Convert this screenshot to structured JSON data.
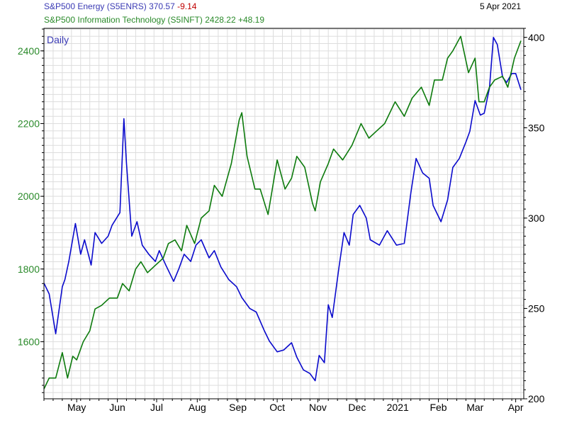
{
  "header": {
    "energy_name": "S&P500 Energy (S5ENRS)",
    "energy_value": "370.57",
    "energy_change": "-9.14",
    "tech_name": "S&P500 Information Technology (S5INFT)",
    "tech_value": "2428.22",
    "tech_change": "+48.19",
    "date": "5 Apr 2021"
  },
  "colors": {
    "energy": "#0a0acc",
    "tech": "#0c7a0c",
    "negative": "#c00000",
    "grid": "#dddddd",
    "label_energy": "#3a3ab4",
    "label_tech": "#2a8a2a"
  },
  "chart_data": {
    "type": "line",
    "period_label": "Daily",
    "x_month_labels": [
      "May",
      "Jun",
      "Jul",
      "Aug",
      "Sep",
      "Oct",
      "Nov",
      "Dec",
      "2021",
      "Feb",
      "Mar",
      "Apr"
    ],
    "left_axis": {
      "ticks": [
        1600,
        1800,
        2000,
        2200,
        2400
      ],
      "range": [
        1443,
        2462
      ]
    },
    "right_axis": {
      "ticks": [
        200,
        250,
        300,
        350,
        400
      ],
      "range": [
        200,
        405
      ]
    },
    "series": [
      {
        "name": "S&P500 Energy (S5ENRS)",
        "axis": "right",
        "x": [
          "2020-04-06",
          "2020-04-10",
          "2020-04-15",
          "2020-04-20",
          "2020-04-22",
          "2020-04-25",
          "2020-04-30",
          "2020-05-04",
          "2020-05-07",
          "2020-05-12",
          "2020-05-15",
          "2020-05-20",
          "2020-05-25",
          "2020-05-28",
          "2020-06-03",
          "2020-06-06",
          "2020-06-08",
          "2020-06-12",
          "2020-06-16",
          "2020-06-20",
          "2020-06-25",
          "2020-06-30",
          "2020-07-03",
          "2020-07-08",
          "2020-07-14",
          "2020-07-18",
          "2020-07-22",
          "2020-07-27",
          "2020-07-31",
          "2020-08-04",
          "2020-08-10",
          "2020-08-14",
          "2020-08-19",
          "2020-08-25",
          "2020-08-31",
          "2020-09-04",
          "2020-09-10",
          "2020-09-15",
          "2020-09-21",
          "2020-09-25",
          "2020-10-01",
          "2020-10-06",
          "2020-10-12",
          "2020-10-16",
          "2020-10-21",
          "2020-10-26",
          "2020-10-30",
          "2020-11-02",
          "2020-11-06",
          "2020-11-09",
          "2020-11-12",
          "2020-11-17",
          "2020-11-21",
          "2020-11-25",
          "2020-11-28",
          "2020-12-03",
          "2020-12-08",
          "2020-12-11",
          "2020-12-18",
          "2020-12-24",
          "2020-12-31",
          "2021-01-06",
          "2021-01-11",
          "2021-01-15",
          "2021-01-20",
          "2021-01-25",
          "2021-01-28",
          "2021-02-03",
          "2021-02-08",
          "2021-02-12",
          "2021-02-17",
          "2021-02-22",
          "2021-02-25",
          "2021-03-01",
          "2021-03-05",
          "2021-03-08",
          "2021-03-12",
          "2021-03-15",
          "2021-03-18",
          "2021-03-22",
          "2021-03-25",
          "2021-03-29",
          "2021-04-01",
          "2021-04-05"
        ],
        "values": [
          264,
          258,
          236,
          262,
          266,
          276,
          297,
          280,
          288,
          274,
          292,
          286,
          290,
          296,
          303,
          355,
          330,
          290,
          298,
          285,
          280,
          276,
          282,
          274,
          265,
          272,
          280,
          276,
          285,
          288,
          278,
          282,
          273,
          266,
          262,
          256,
          250,
          248,
          238,
          232,
          226,
          227,
          231,
          223,
          216,
          214,
          210,
          224,
          220,
          252,
          245,
          272,
          292,
          285,
          302,
          307,
          300,
          288,
          285,
          293,
          285,
          286,
          314,
          333,
          325,
          322,
          307,
          298,
          310,
          328,
          333,
          342,
          348,
          365,
          357,
          358,
          372,
          400,
          396,
          378,
          375,
          380,
          380,
          371
        ],
        "color": "#0a0acc"
      },
      {
        "name": "S&P500 Information Technology (S5INFT)",
        "axis": "left",
        "x": [
          "2020-04-06",
          "2020-04-10",
          "2020-04-15",
          "2020-04-20",
          "2020-04-24",
          "2020-04-28",
          "2020-05-01",
          "2020-05-06",
          "2020-05-11",
          "2020-05-15",
          "2020-05-20",
          "2020-05-26",
          "2020-06-01",
          "2020-06-05",
          "2020-06-10",
          "2020-06-15",
          "2020-06-19",
          "2020-06-24",
          "2020-06-30",
          "2020-07-06",
          "2020-07-10",
          "2020-07-15",
          "2020-07-20",
          "2020-07-24",
          "2020-07-30",
          "2020-08-04",
          "2020-08-10",
          "2020-08-14",
          "2020-08-20",
          "2020-08-27",
          "2020-09-02",
          "2020-09-04",
          "2020-09-08",
          "2020-09-14",
          "2020-09-18",
          "2020-09-24",
          "2020-10-01",
          "2020-10-07",
          "2020-10-12",
          "2020-10-16",
          "2020-10-22",
          "2020-10-28",
          "2020-10-30",
          "2020-11-03",
          "2020-11-09",
          "2020-11-13",
          "2020-11-20",
          "2020-11-27",
          "2020-12-04",
          "2020-12-10",
          "2020-12-16",
          "2020-12-22",
          "2020-12-30",
          "2021-01-06",
          "2021-01-12",
          "2021-01-19",
          "2021-01-25",
          "2021-01-29",
          "2021-02-04",
          "2021-02-08",
          "2021-02-12",
          "2021-02-18",
          "2021-02-24",
          "2021-03-01",
          "2021-03-04",
          "2021-03-08",
          "2021-03-12",
          "2021-03-16",
          "2021-03-22",
          "2021-03-26",
          "2021-03-31",
          "2021-04-05"
        ],
        "values": [
          1470,
          1500,
          1500,
          1570,
          1500,
          1560,
          1550,
          1600,
          1630,
          1690,
          1700,
          1720,
          1720,
          1760,
          1740,
          1800,
          1820,
          1790,
          1810,
          1830,
          1870,
          1880,
          1850,
          1920,
          1870,
          1940,
          1960,
          2030,
          2000,
          2090,
          2210,
          2230,
          2110,
          2020,
          2020,
          1950,
          2100,
          2020,
          2050,
          2110,
          2080,
          1980,
          1960,
          2040,
          2090,
          2130,
          2100,
          2140,
          2200,
          2160,
          2180,
          2200,
          2260,
          2220,
          2270,
          2300,
          2250,
          2320,
          2320,
          2380,
          2400,
          2440,
          2340,
          2380,
          2260,
          2260,
          2300,
          2320,
          2330,
          2300,
          2380,
          2428
        ],
        "color": "#0c7a0c"
      }
    ]
  }
}
